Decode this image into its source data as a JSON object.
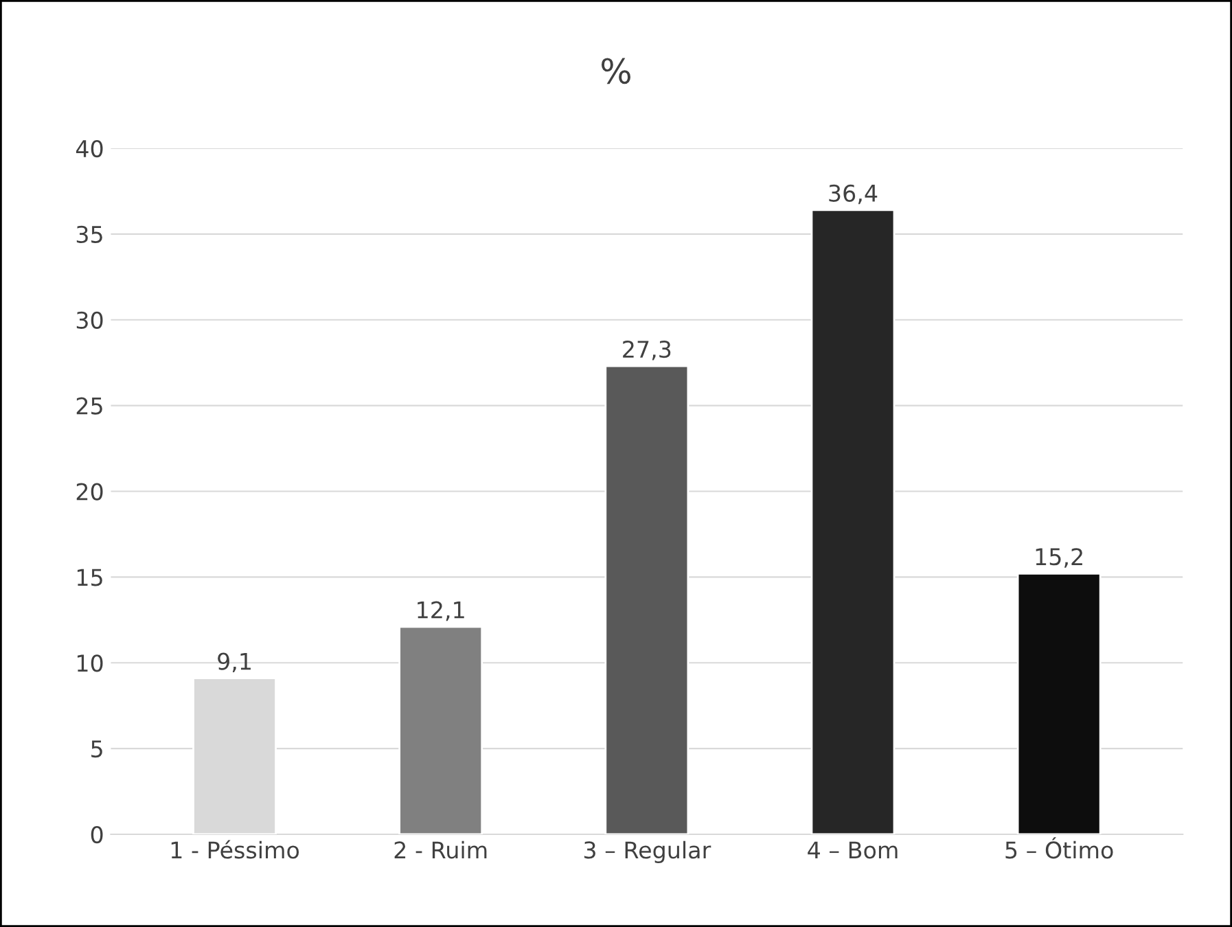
{
  "chart_data": {
    "type": "bar",
    "title": "%",
    "categories": [
      "1 - Péssimo",
      "2 - Ruim",
      "3 – Regular",
      "4 – Bom",
      "5 – Ótimo"
    ],
    "values": [
      9.1,
      12.1,
      27.3,
      36.4,
      15.2
    ],
    "colors": [
      "#d9d9d9",
      "#808080",
      "#595959",
      "#262626",
      "#0d0d0d"
    ],
    "value_labels": [
      "9,1",
      "12,1",
      "27,3",
      "36,4",
      "15,2"
    ],
    "ylim": [
      0,
      40
    ],
    "yticks": [
      0,
      5,
      10,
      15,
      20,
      25,
      30,
      35,
      40
    ],
    "grid": "y"
  }
}
